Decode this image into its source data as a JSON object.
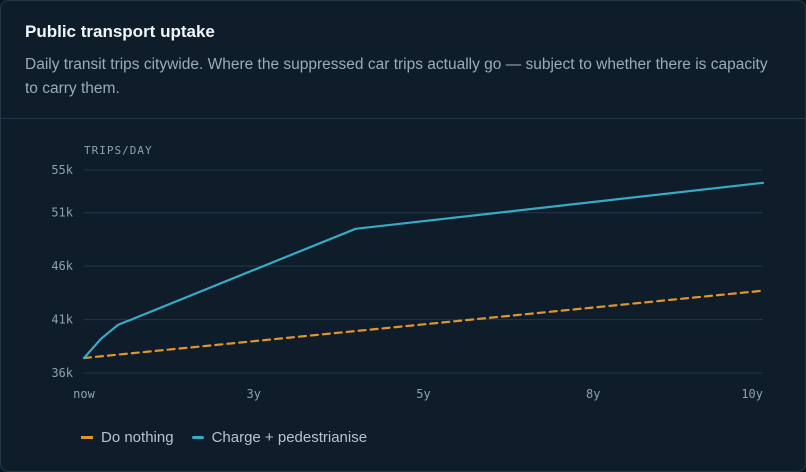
{
  "card": {
    "title": "Public transport uptake",
    "subtitle": "Daily transit trips citywide. Where the suppressed car trips actually go — subject to whether there is capacity to carry them."
  },
  "chart_data": {
    "type": "line",
    "ylabel": "TRIPS/DAY",
    "y_ticks": [
      "55k",
      "51k",
      "46k",
      "41k",
      "36k"
    ],
    "y_tick_values": [
      55000,
      51000,
      46000,
      41000,
      36000
    ],
    "x_ticks": [
      "now",
      "3y",
      "5y",
      "8y",
      "10y"
    ],
    "x_tick_values": [
      0,
      2.5,
      5,
      7.5,
      10
    ],
    "xlim": [
      0,
      10
    ],
    "ylim": [
      36000,
      55000
    ],
    "grid": true,
    "legend_position": "bottom-left",
    "series": [
      {
        "name": "Do nothing",
        "color": "#e0962e",
        "style": "dashed",
        "points": [
          [
            0,
            37400
          ],
          [
            10,
            43700
          ]
        ]
      },
      {
        "name": "Charge + pedestrianise",
        "color": "#38a9c6",
        "style": "solid",
        "points": [
          [
            0,
            37400
          ],
          [
            0.25,
            39200
          ],
          [
            0.5,
            40500
          ],
          [
            4.0,
            49500
          ],
          [
            10,
            53800
          ]
        ]
      }
    ]
  }
}
